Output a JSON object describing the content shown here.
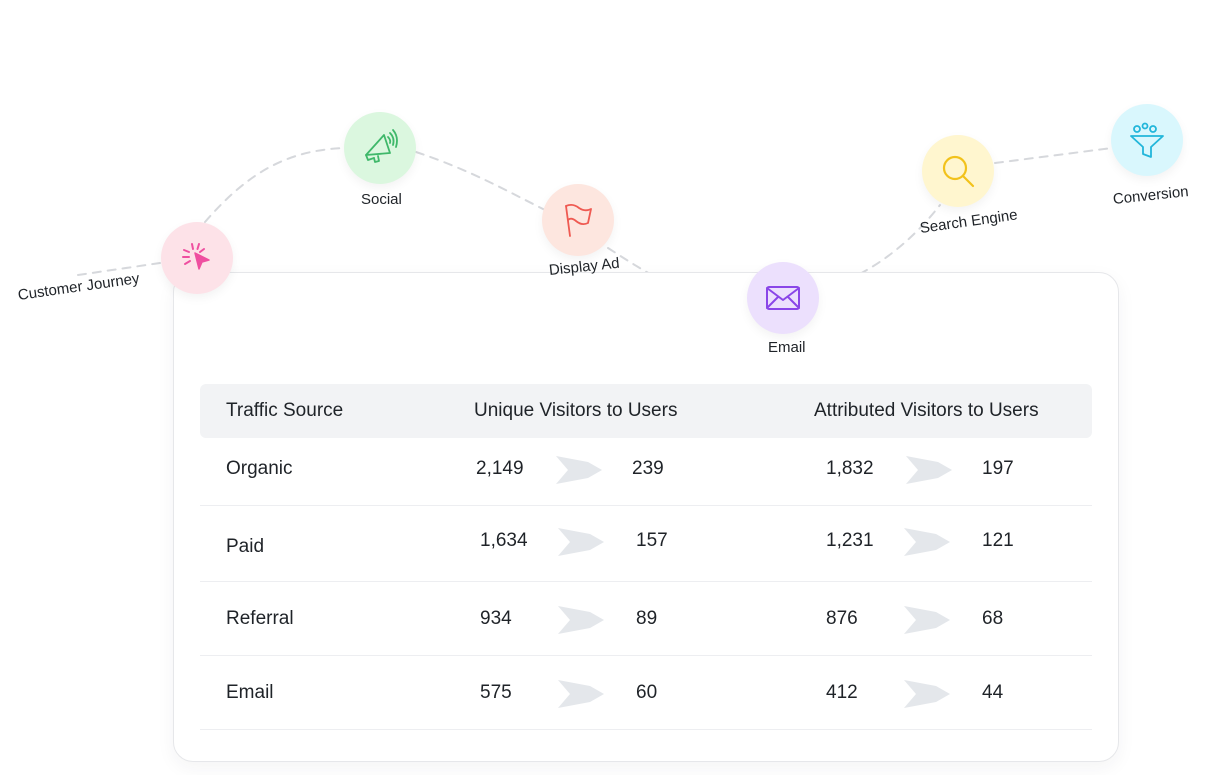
{
  "journey": {
    "steps": [
      {
        "label": "Customer Journey",
        "icon": "cursor-click-icon",
        "bg": "#fde2e8",
        "color": "#ef4fa0"
      },
      {
        "label": "Social",
        "icon": "megaphone-icon",
        "bg": "#dbf7df",
        "color": "#3fb86a"
      },
      {
        "label": "Display Ad",
        "icon": "flag-icon",
        "bg": "#fde6df",
        "color": "#ef5a52"
      },
      {
        "label": "Email",
        "icon": "envelope-icon",
        "bg": "#ece0fd",
        "color": "#8a46e8"
      },
      {
        "label": "Search Engine",
        "icon": "search-icon",
        "bg": "#fff6cf",
        "color": "#f2c21b"
      },
      {
        "label": "Conversion",
        "icon": "funnel-icon",
        "bg": "#d9f7fd",
        "color": "#22b6da"
      }
    ]
  },
  "table": {
    "headers": [
      "Traffic Source",
      "Unique Visitors to Users",
      "Attributed Visitors to Users"
    ],
    "rows": [
      {
        "source": "Organic",
        "unique_visitors": "2,149",
        "unique_users": "239",
        "attributed_visitors": "1,832",
        "attributed_users": "197"
      },
      {
        "source": "Paid",
        "unique_visitors": "1,634",
        "unique_users": "157",
        "attributed_visitors": "1,231",
        "attributed_users": "121"
      },
      {
        "source": "Referral",
        "unique_visitors": "934",
        "unique_users": "89",
        "attributed_visitors": "876",
        "attributed_users": "68"
      },
      {
        "source": "Email",
        "unique_visitors": "575",
        "unique_users": "60",
        "attributed_visitors": "412",
        "attributed_users": "44"
      }
    ],
    "arrow_icon": "funnel-arrow-icon"
  }
}
